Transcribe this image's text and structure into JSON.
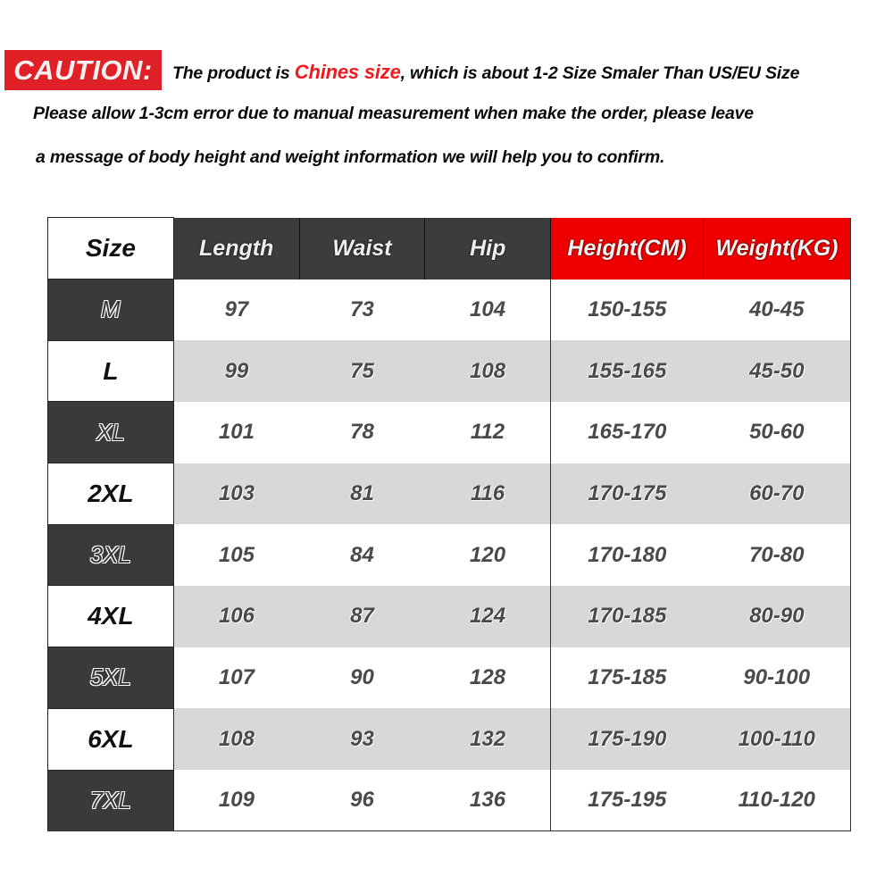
{
  "notice": {
    "caution_label": "CAUTION:",
    "line1_prefix": "The product is ",
    "line1_highlight": "Chines size",
    "line1_suffix": ", which is about 1-2 Size Smaler Than US/EU Size",
    "line2": "Please allow 1-3cm error due to manual measurement when make the order, please leave",
    "line3": "a message of body height and weight information we will help you to confirm."
  },
  "colors": {
    "caution_red": "#e02027",
    "header_dark": "#3c3c3c",
    "header_red": "#ee0000",
    "alt_row": "#d8d8d8"
  },
  "table": {
    "headers": [
      "Size",
      "Length",
      "Waist",
      "Hip",
      "Height(CM)",
      "Weight(KG)"
    ],
    "rows": [
      [
        "M",
        "97",
        "73",
        "104",
        "150-155",
        "40-45"
      ],
      [
        "L",
        "99",
        "75",
        "108",
        "155-165",
        "45-50"
      ],
      [
        "XL",
        "101",
        "78",
        "112",
        "165-170",
        "50-60"
      ],
      [
        "2XL",
        "103",
        "81",
        "116",
        "170-175",
        "60-70"
      ],
      [
        "3XL",
        "105",
        "84",
        "120",
        "170-180",
        "70-80"
      ],
      [
        "4XL",
        "106",
        "87",
        "124",
        "170-185",
        "80-90"
      ],
      [
        "5XL",
        "107",
        "90",
        "128",
        "175-185",
        "90-100"
      ],
      [
        "6XL",
        "108",
        "93",
        "132",
        "175-190",
        "100-110"
      ],
      [
        "7XL",
        "109",
        "96",
        "136",
        "175-195",
        "110-120"
      ]
    ]
  }
}
